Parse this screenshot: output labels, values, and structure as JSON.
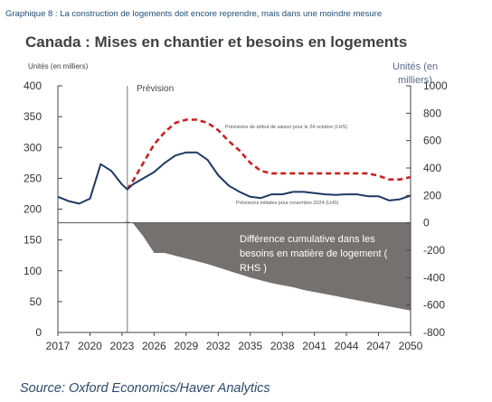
{
  "header": {
    "overline": "Graphique 8 : La construction de logements doit encore reprendre, mais dans une moindre mesure",
    "title": "Canada : Mises en chantier et besoins en logements"
  },
  "footer": {
    "source": "Source: Oxford Economics/Haver Analytics"
  },
  "chart_data": {
    "type": "line",
    "title": "Canada : Mises en chantier et besoins en logements",
    "y_left_label": "Unités (en milliers)",
    "y_right_label_lines": [
      "Unités (en",
      "milliers)"
    ],
    "ylim_left": [
      0,
      400
    ],
    "ylim_right": [
      -800,
      1000
    ],
    "xlim": [
      2017,
      2050
    ],
    "x_ticks": [
      2017,
      2020,
      2023,
      2026,
      2029,
      2032,
      2035,
      2038,
      2041,
      2044,
      2047,
      2050
    ],
    "y_left_ticks": [
      0,
      50,
      100,
      150,
      200,
      250,
      300,
      350,
      400
    ],
    "y_right_ticks": [
      -800,
      -600,
      -400,
      -200,
      0,
      200,
      400,
      600,
      800,
      1000
    ],
    "forecast_start": 2023.5,
    "forecast_label": "Prévision",
    "grid": false,
    "series": [
      {
        "name": "Prévisions de début de saison pour le 24 octobre (LHS)",
        "axis": "left",
        "style": "dashed",
        "color": "#cc2020",
        "x": [
          2023.5,
          2024,
          2025,
          2026,
          2027,
          2028,
          2029,
          2030,
          2031,
          2032,
          2033,
          2034,
          2035,
          2036,
          2037,
          2038,
          2039,
          2040,
          2041,
          2042,
          2043,
          2044,
          2045,
          2046,
          2047,
          2048,
          2049,
          2050
        ],
        "values": [
          232,
          245,
          275,
          305,
          325,
          340,
          345,
          345,
          340,
          328,
          310,
          295,
          275,
          262,
          258,
          258,
          258,
          258,
          258,
          258,
          258,
          258,
          258,
          258,
          254,
          248,
          248,
          252
        ]
      },
      {
        "name": "Prévisions initiales pour novembre 2024 (LHS)",
        "axis": "left",
        "style": "solid",
        "color": "#1f3864",
        "x": [
          2017,
          2018,
          2019,
          2020,
          2021,
          2022,
          2023,
          2023.5,
          2024,
          2025,
          2026,
          2027,
          2028,
          2029,
          2030,
          2031,
          2032,
          2033,
          2034,
          2035,
          2036,
          2037,
          2038,
          2039,
          2040,
          2041,
          2042,
          2043,
          2044,
          2045,
          2046,
          2047,
          2048,
          2049,
          2050
        ],
        "values": [
          220,
          213,
          209,
          217,
          273,
          262,
          240,
          232,
          240,
          250,
          260,
          275,
          287,
          292,
          292,
          280,
          255,
          238,
          228,
          220,
          218,
          224,
          224,
          228,
          228,
          226,
          224,
          223,
          224,
          224,
          221,
          221,
          214,
          216,
          222
        ]
      },
      {
        "name": "Différence cumulative dans les besoins en matière de logement ( RHS )",
        "axis": "right",
        "style": "area",
        "color": "#767171",
        "x": [
          2017,
          2023,
          2023.5,
          2024,
          2025,
          2026,
          2027,
          2028,
          2029,
          2030,
          2031,
          2032,
          2033,
          2034,
          2035,
          2036,
          2037,
          2038,
          2039,
          2040,
          2041,
          2042,
          2043,
          2044,
          2045,
          2046,
          2047,
          2048,
          2049,
          2050
        ],
        "values": [
          0,
          0,
          10,
          0,
          -100,
          -220,
          -220,
          -240,
          -260,
          -280,
          -300,
          -325,
          -350,
          -375,
          -400,
          -420,
          -440,
          -455,
          -470,
          -490,
          -505,
          -520,
          -535,
          -550,
          -565,
          -580,
          -595,
          -610,
          -625,
          -640
        ]
      }
    ],
    "labels": {
      "dashed_series_label": "Prévisions de début de saison pour le 24 octobre (LHS)",
      "solid_series_label": "Prévisions initiales pour novembre 2024 (LHS)",
      "area_label_lines": [
        "Différence cumulative dans les",
        "besoins en matière de logement (",
        "RHS )"
      ]
    }
  }
}
